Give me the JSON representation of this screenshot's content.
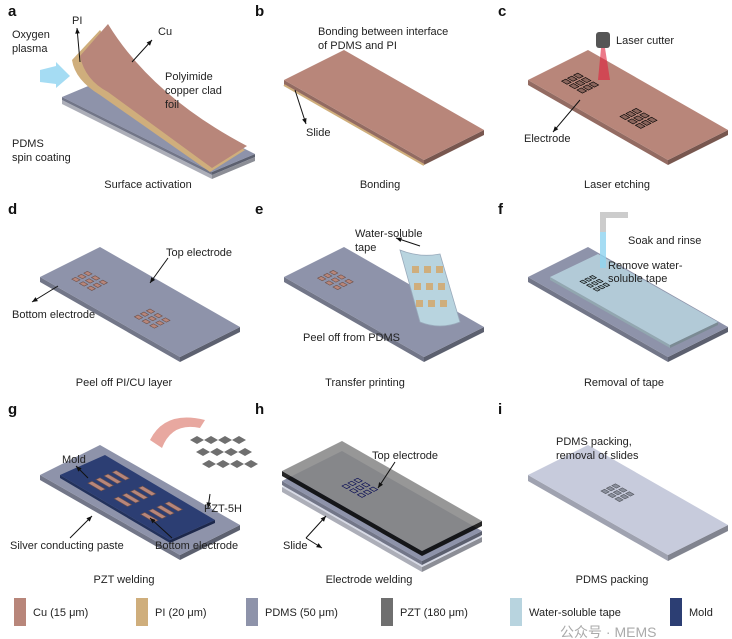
{
  "colors": {
    "cu": "#b8867a",
    "pi": "#cfae7c",
    "pdms": "#8e93aa",
    "pzt": "#6f6f6f",
    "tape": "#b8d4df",
    "mold": "#2c3e73",
    "plasma": "#8fd3f0",
    "laser": "#e0203a"
  },
  "panels": {
    "a": {
      "label": "a",
      "caption": "Surface activation",
      "notes": [
        "Oxygen",
        "plasma",
        "PI",
        "Cu",
        "Polyimide",
        "copper clad",
        "foil",
        "PDMS",
        "spin coating"
      ]
    },
    "b": {
      "label": "b",
      "caption": "Bonding",
      "notes": [
        "Bonding between interface",
        "of PDMS and PI",
        "Slide"
      ]
    },
    "c": {
      "label": "c",
      "caption": "Laser etching",
      "notes": [
        "Laser cutter",
        "Electrode"
      ]
    },
    "d": {
      "label": "d",
      "caption": "Peel off PI/CU layer",
      "notes": [
        "Top electrode",
        "Bottom electrode"
      ]
    },
    "e": {
      "label": "e",
      "caption": "Transfer printing",
      "notes": [
        "Water-soluble",
        "tape",
        "Peel off from PDMS"
      ]
    },
    "f": {
      "label": "f",
      "caption": "Removal of tape",
      "notes": [
        "Soak and rinse",
        "Remove water-",
        "soluble tape"
      ]
    },
    "g": {
      "label": "g",
      "caption": "PZT welding",
      "notes": [
        "Mold",
        "PZT-5H",
        "Silver conducting paste",
        "Bottom electrode"
      ]
    },
    "h": {
      "label": "h",
      "caption": "Electrode welding",
      "notes": [
        "Top electrode",
        "Slide"
      ]
    },
    "i": {
      "label": "i",
      "caption": "PDMS packing",
      "notes": [
        "PDMS packing,",
        "removal of slides"
      ]
    }
  },
  "legend": [
    {
      "label": "Cu (15 μm)",
      "color": "#b8867a"
    },
    {
      "label": "PI (20 μm)",
      "color": "#cfae7c"
    },
    {
      "label": "PDMS (50 μm)",
      "color": "#8e93aa"
    },
    {
      "label": "PZT (180 μm)",
      "color": "#6f6f6f"
    },
    {
      "label": "Water-soluble tape",
      "color": "#b8d4df"
    },
    {
      "label": "Mold",
      "color": "#2c3e73"
    }
  ],
  "watermark": "公众号 · MEMS"
}
